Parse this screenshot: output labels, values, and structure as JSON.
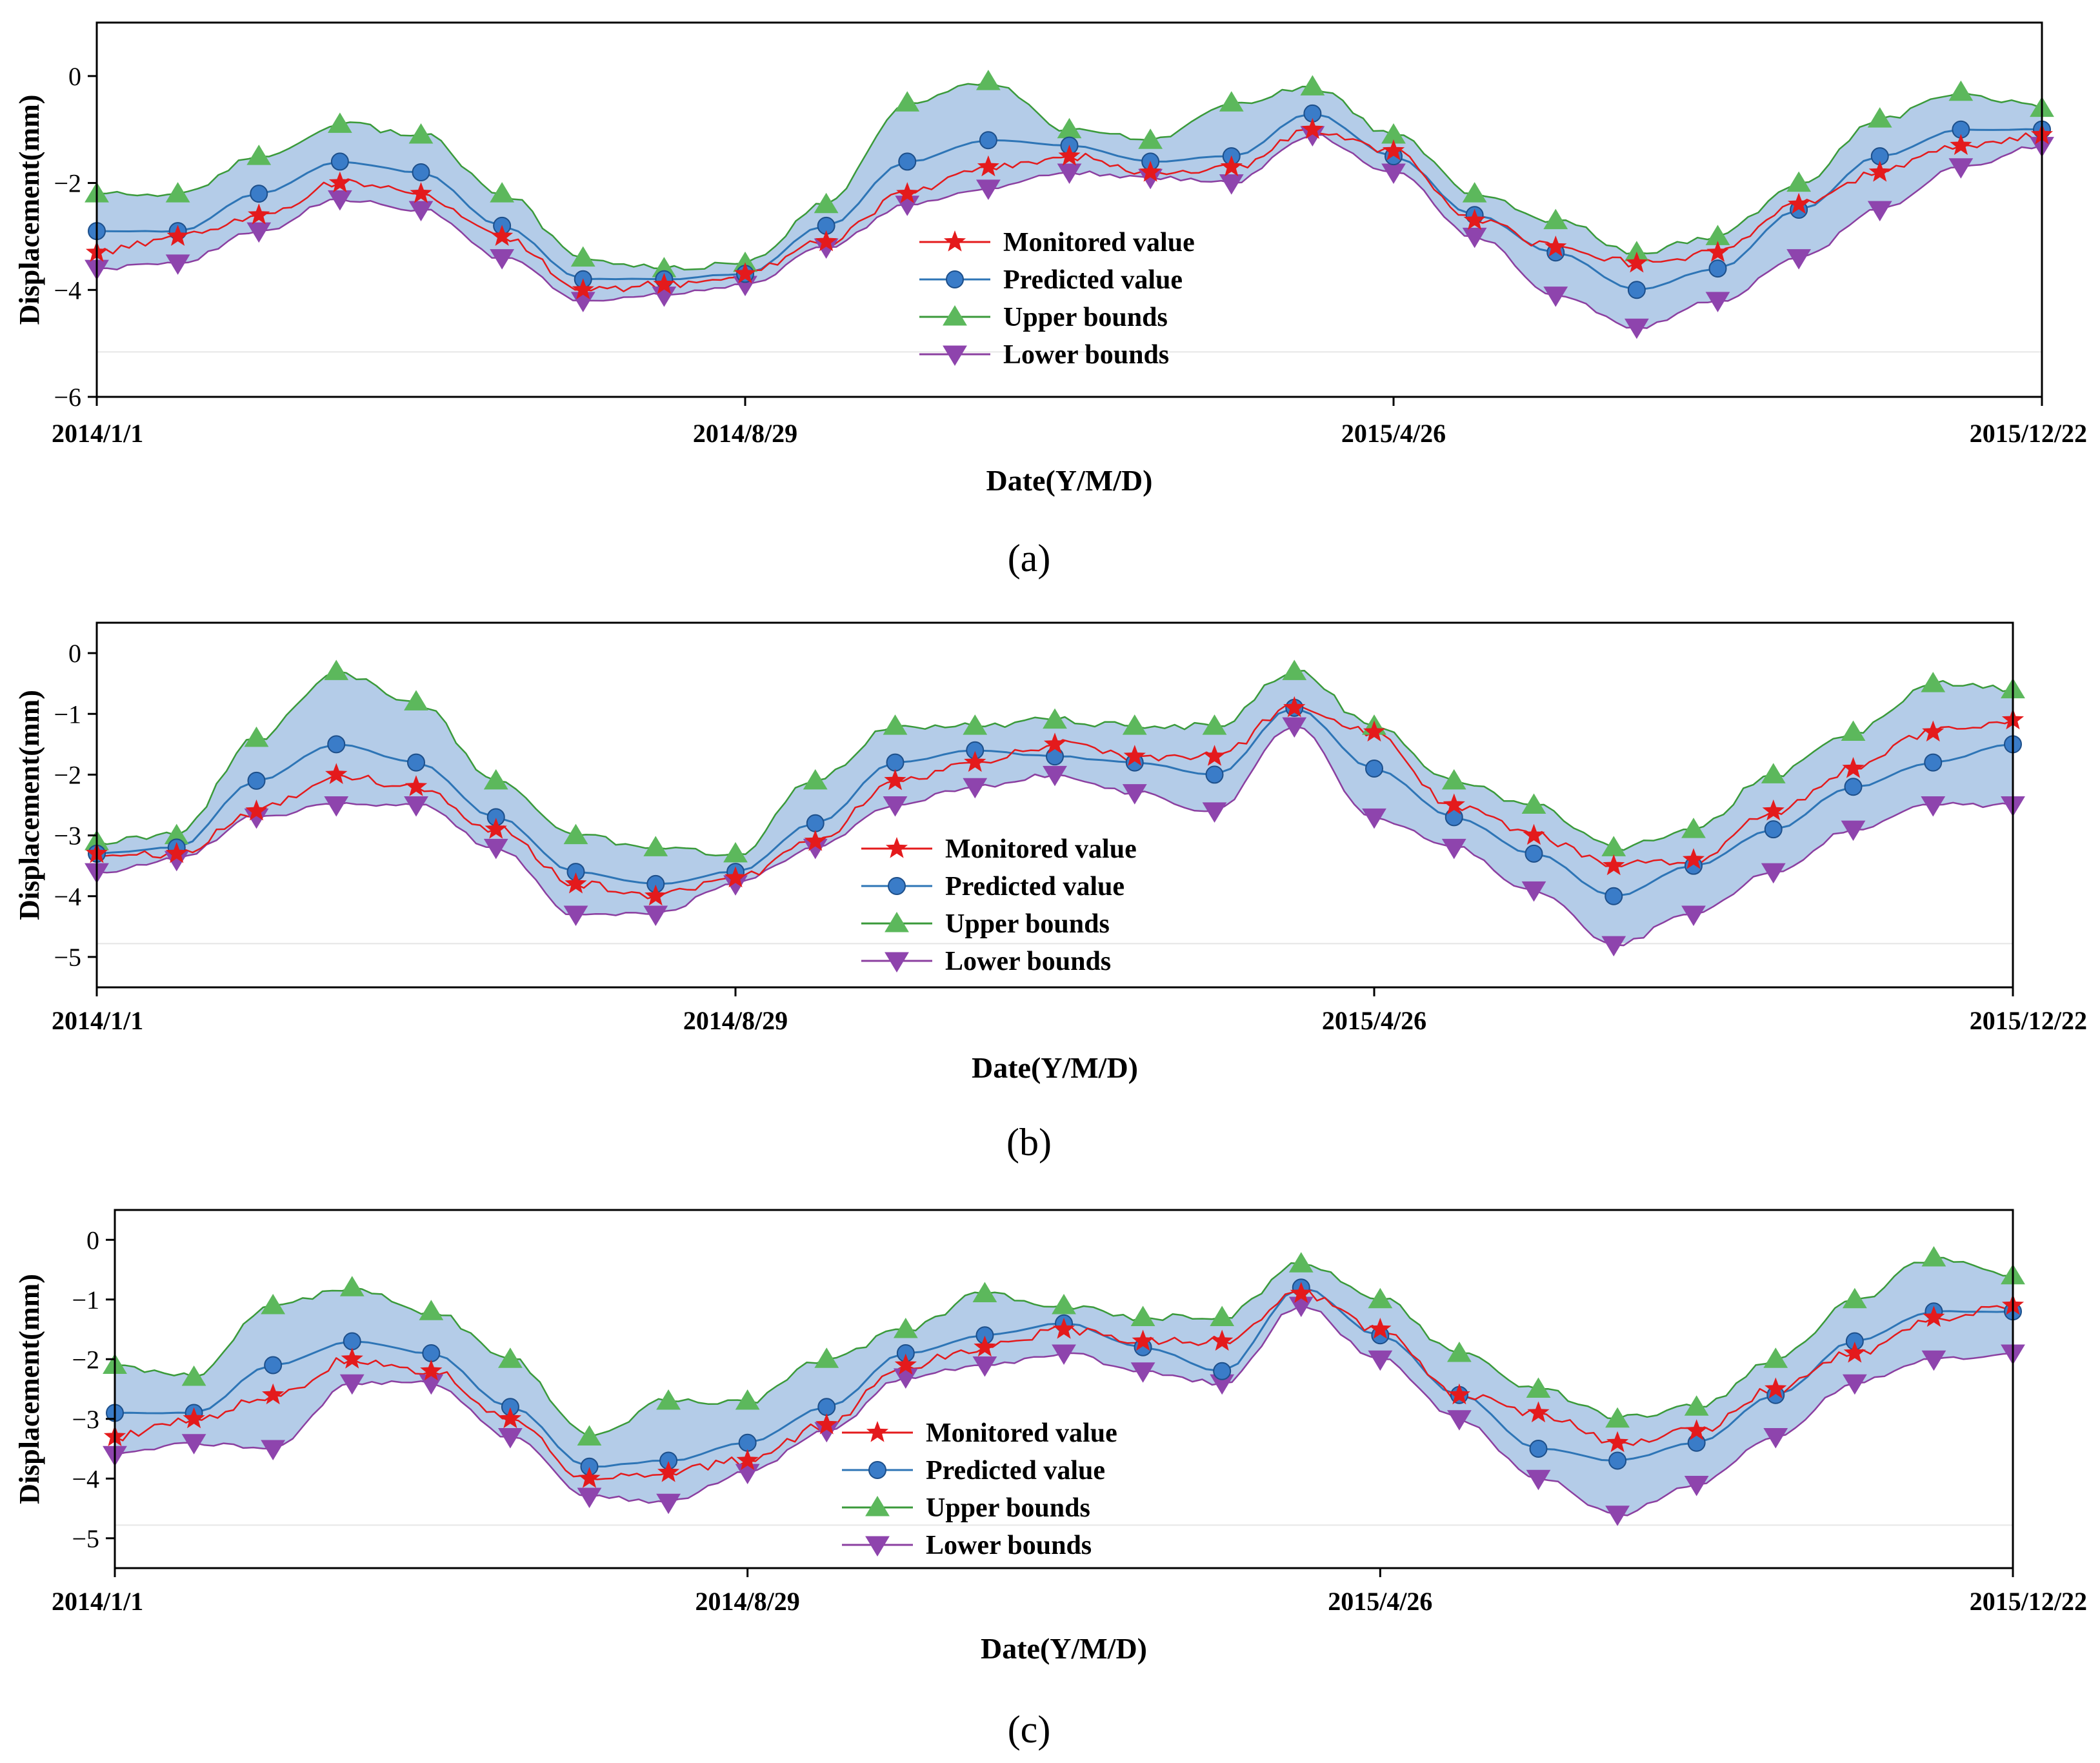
{
  "figure": {
    "panels": [
      {
        "caption": "(a)"
      },
      {
        "caption": "(b)"
      },
      {
        "caption": "(c)"
      }
    ]
  },
  "legend_labels": [
    "Monitored value",
    "Predicted value",
    "Upper bounds",
    "Lower bounds"
  ],
  "colors": {
    "monitored": "#e41a1c",
    "predicted": "#2e75b6",
    "upper": "#3a9a3a",
    "lower": "#8b3fa0",
    "band": "#b4cce8",
    "marker_predicted": "#3a7cc8",
    "marker_upper": "#5cb85c",
    "marker_lower": "#8e44ad"
  },
  "chart_data": [
    {
      "type": "line",
      "panel": "(a)",
      "xlabel": "Date(Y/M/D)",
      "ylabel": "Displacement(mm)",
      "xlim": [
        0,
        720
      ],
      "ylim": [
        -6,
        1
      ],
      "yticks": [
        0,
        -2,
        -4,
        -6
      ],
      "ytick_labels": [
        "0",
        "−2",
        "−4",
        "−6"
      ],
      "xticks": [
        0,
        240,
        480,
        720
      ],
      "xtick_labels": [
        "2014/1/1",
        "2014/8/29",
        "2015/4/26",
        "2015/12/22"
      ],
      "x": [
        0,
        30,
        60,
        90,
        120,
        150,
        180,
        210,
        240,
        270,
        300,
        330,
        360,
        390,
        420,
        450,
        480,
        510,
        540,
        570,
        600,
        630,
        660,
        690,
        720
      ],
      "series": [
        {
          "name": "Monitored value",
          "values": [
            -3.3,
            -3.0,
            -2.6,
            -2.0,
            -2.2,
            -3.0,
            -4.0,
            -3.9,
            -3.7,
            -3.1,
            -2.2,
            -1.7,
            -1.5,
            -1.8,
            -1.7,
            -1.0,
            -1.4,
            -2.7,
            -3.2,
            -3.5,
            -3.3,
            -2.4,
            -1.8,
            -1.3,
            -1.1
          ]
        },
        {
          "name": "Predicted value",
          "values": [
            -2.9,
            -2.9,
            -2.2,
            -1.6,
            -1.8,
            -2.8,
            -3.8,
            -3.8,
            -3.7,
            -2.8,
            -1.6,
            -1.2,
            -1.3,
            -1.6,
            -1.5,
            -0.7,
            -1.5,
            -2.6,
            -3.3,
            -4.0,
            -3.6,
            -2.5,
            -1.5,
            -1.0,
            -1.0
          ]
        },
        {
          "name": "Upper bounds",
          "values": [
            -2.2,
            -2.2,
            -1.5,
            -0.9,
            -1.1,
            -2.2,
            -3.4,
            -3.6,
            -3.5,
            -2.4,
            -0.5,
            -0.1,
            -1.0,
            -1.2,
            -0.5,
            -0.2,
            -1.1,
            -2.2,
            -2.7,
            -3.3,
            -3.0,
            -2.0,
            -0.8,
            -0.3,
            -0.6
          ]
        },
        {
          "name": "Lower bounds",
          "values": [
            -3.6,
            -3.5,
            -2.9,
            -2.3,
            -2.5,
            -3.4,
            -4.2,
            -4.1,
            -3.9,
            -3.2,
            -2.4,
            -2.1,
            -1.8,
            -1.9,
            -2.0,
            -1.1,
            -1.8,
            -3.0,
            -4.1,
            -4.7,
            -4.2,
            -3.4,
            -2.5,
            -1.7,
            -1.3
          ]
        }
      ]
    },
    {
      "type": "line",
      "panel": "(b)",
      "xlabel": "Date(Y/M/D)",
      "ylabel": "Displacement(mm)",
      "xlim": [
        0,
        720
      ],
      "ylim": [
        -5.5,
        0.5
      ],
      "yticks": [
        0,
        -1,
        -2,
        -3,
        -4,
        -5
      ],
      "ytick_labels": [
        "0",
        "−1",
        "−2",
        "−3",
        "−4",
        "−5"
      ],
      "xticks": [
        0,
        240,
        480,
        720
      ],
      "xtick_labels": [
        "2014/1/1",
        "2014/8/29",
        "2015/4/26",
        "2015/12/22"
      ],
      "x": [
        0,
        30,
        60,
        90,
        120,
        150,
        180,
        210,
        240,
        270,
        300,
        330,
        360,
        390,
        420,
        450,
        480,
        510,
        540,
        570,
        600,
        630,
        660,
        690,
        720
      ],
      "series": [
        {
          "name": "Monitored value",
          "values": [
            -3.3,
            -3.3,
            -2.6,
            -2.0,
            -2.2,
            -2.9,
            -3.8,
            -4.0,
            -3.7,
            -3.1,
            -2.1,
            -1.8,
            -1.5,
            -1.7,
            -1.7,
            -0.9,
            -1.3,
            -2.5,
            -3.0,
            -3.5,
            -3.4,
            -2.6,
            -1.9,
            -1.3,
            -1.1
          ]
        },
        {
          "name": "Predicted value",
          "values": [
            -3.3,
            -3.2,
            -2.1,
            -1.5,
            -1.8,
            -2.7,
            -3.6,
            -3.8,
            -3.6,
            -2.8,
            -1.8,
            -1.6,
            -1.7,
            -1.8,
            -2.0,
            -0.9,
            -1.9,
            -2.7,
            -3.3,
            -4.0,
            -3.5,
            -2.9,
            -2.2,
            -1.8,
            -1.5
          ]
        },
        {
          "name": "Upper bounds",
          "values": [
            -3.1,
            -3.0,
            -1.4,
            -0.3,
            -0.8,
            -2.1,
            -3.0,
            -3.2,
            -3.3,
            -2.1,
            -1.2,
            -1.2,
            -1.1,
            -1.2,
            -1.2,
            -0.3,
            -1.2,
            -2.1,
            -2.5,
            -3.2,
            -2.9,
            -2.0,
            -1.3,
            -0.5,
            -0.6
          ]
        },
        {
          "name": "Lower bounds",
          "values": [
            -3.6,
            -3.4,
            -2.7,
            -2.5,
            -2.5,
            -3.2,
            -4.3,
            -4.3,
            -3.8,
            -3.2,
            -2.5,
            -2.2,
            -2.0,
            -2.3,
            -2.6,
            -1.2,
            -2.7,
            -3.2,
            -3.9,
            -4.8,
            -4.3,
            -3.6,
            -2.9,
            -2.5,
            -2.5
          ]
        }
      ]
    },
    {
      "type": "line",
      "panel": "(c)",
      "xlabel": "Date(Y/M/D)",
      "ylabel": "Displacement(mm)",
      "xlim": [
        0,
        720
      ],
      "ylim": [
        -5.5,
        0.5
      ],
      "yticks": [
        0,
        -1,
        -2,
        -3,
        -4,
        -5
      ],
      "ytick_labels": [
        "0",
        "−1",
        "−2",
        "−3",
        "−4",
        "−5"
      ],
      "xticks": [
        0,
        240,
        480,
        720
      ],
      "xtick_labels": [
        "2014/1/1",
        "2014/8/29",
        "2015/4/26",
        "2015/12/22"
      ],
      "x": [
        0,
        30,
        60,
        90,
        120,
        150,
        180,
        210,
        240,
        270,
        300,
        330,
        360,
        390,
        420,
        450,
        480,
        510,
        540,
        570,
        600,
        630,
        660,
        690,
        720
      ],
      "series": [
        {
          "name": "Monitored value",
          "values": [
            -3.3,
            -3.0,
            -2.6,
            -2.0,
            -2.2,
            -3.0,
            -4.0,
            -3.9,
            -3.7,
            -3.1,
            -2.1,
            -1.8,
            -1.5,
            -1.7,
            -1.7,
            -0.9,
            -1.5,
            -2.6,
            -2.9,
            -3.4,
            -3.2,
            -2.5,
            -1.9,
            -1.3,
            -1.1
          ]
        },
        {
          "name": "Predicted value",
          "values": [
            -2.9,
            -2.9,
            -2.1,
            -1.7,
            -1.9,
            -2.8,
            -3.8,
            -3.7,
            -3.4,
            -2.8,
            -1.9,
            -1.6,
            -1.4,
            -1.8,
            -2.2,
            -0.8,
            -1.6,
            -2.6,
            -3.5,
            -3.7,
            -3.4,
            -2.6,
            -1.7,
            -1.2,
            -1.2
          ]
        },
        {
          "name": "Upper bounds",
          "values": [
            -2.1,
            -2.3,
            -1.1,
            -0.8,
            -1.2,
            -2.0,
            -3.3,
            -2.7,
            -2.7,
            -2.0,
            -1.5,
            -0.9,
            -1.1,
            -1.3,
            -1.3,
            -0.4,
            -1.0,
            -1.9,
            -2.5,
            -3.0,
            -2.8,
            -2.0,
            -1.0,
            -0.3,
            -0.6
          ]
        },
        {
          "name": "Lower bounds",
          "values": [
            -3.6,
            -3.4,
            -3.5,
            -2.4,
            -2.4,
            -3.3,
            -4.3,
            -4.4,
            -3.9,
            -3.2,
            -2.3,
            -2.1,
            -1.9,
            -2.2,
            -2.4,
            -1.1,
            -2.0,
            -3.0,
            -4.0,
            -4.6,
            -4.1,
            -3.3,
            -2.4,
            -2.0,
            -1.9
          ]
        }
      ]
    }
  ]
}
